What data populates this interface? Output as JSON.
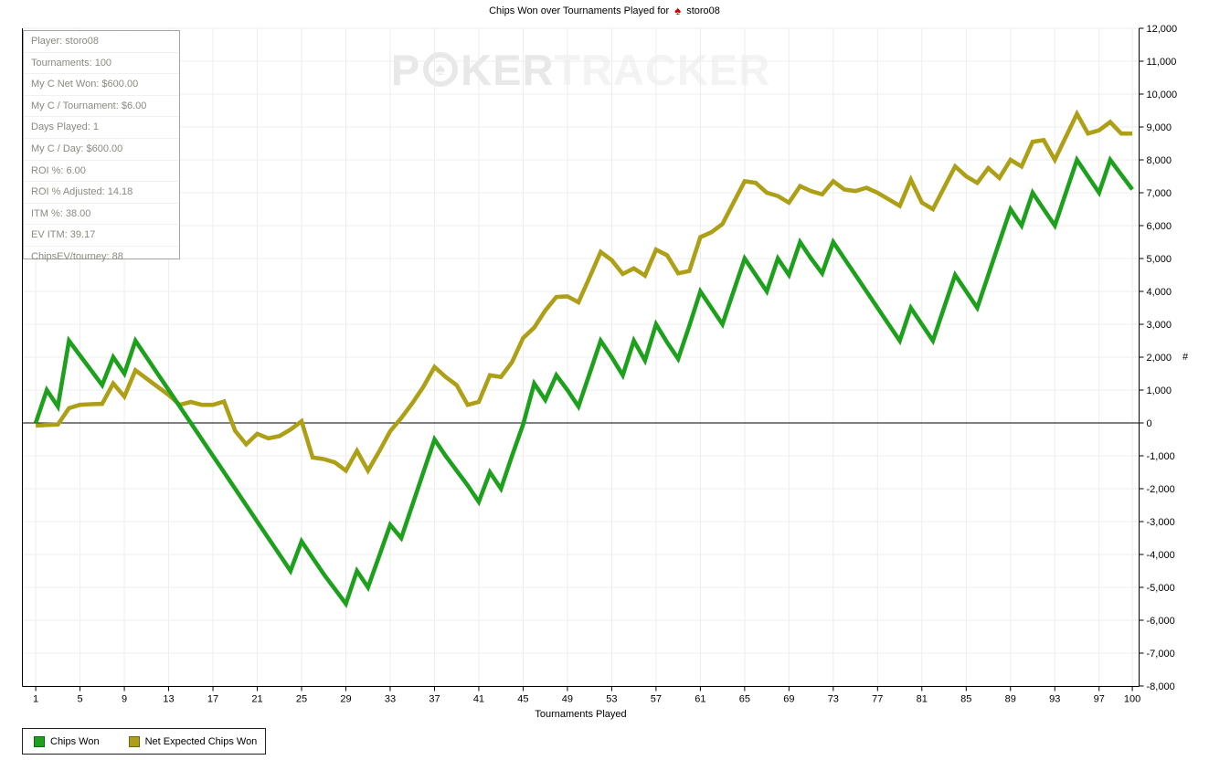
{
  "title": {
    "prefix": "Chips Won over Tournaments Played for",
    "player": "storo08",
    "site_icon": "red-spade",
    "icon_color": "#d40000"
  },
  "stats_panel": {
    "rows": [
      "Player: storo08",
      "Tournaments: 100",
      "My C Net Won: $600.00",
      "My C / Tournament: $6.00",
      "Days Played: 1",
      "My C / Day: $600.00",
      "ROI %: 6.00",
      "ROI % Adjusted: 14.18",
      "ITM %: 38.00",
      "EV ITM: 39.17",
      "ChipsEV/tourney: 88"
    ]
  },
  "watermark": {
    "p": "P",
    "ker": "KER",
    "tracker": "TRACKER",
    "chip_glyph": "♠"
  },
  "axes": {
    "x_label": "Tournaments Played",
    "y_label": "#"
  },
  "legend": {
    "items": [
      {
        "label": "Chips Won",
        "color": "#1da11d"
      },
      {
        "label": "Net Expected Chips Won",
        "color": "#aea016"
      }
    ]
  },
  "colors": {
    "grid": "#ededed",
    "axis": "#000000",
    "zero_line": "#000000",
    "tick_text": "#000000",
    "stats_text": "#8a8a80",
    "watermark_dark": "#e8e8e8",
    "watermark_light": "#f3f3f3"
  },
  "chart_data": {
    "type": "line",
    "title": "Chips Won over Tournaments Played for storo08",
    "xlabel": "Tournaments Played",
    "ylabel": "#",
    "xlim": [
      1,
      100
    ],
    "ylim": [
      -8000,
      12000
    ],
    "y_tick_step": 1000,
    "grid": true,
    "legend_position": "bottom-left",
    "x_ticks": [
      1,
      5,
      9,
      13,
      17,
      21,
      25,
      29,
      33,
      37,
      41,
      45,
      49,
      53,
      57,
      61,
      65,
      69,
      73,
      77,
      81,
      85,
      89,
      93,
      97,
      100
    ],
    "x_range_note": "x values are tournaments 1..100, one point per tournament (index+1)",
    "series": [
      {
        "name": "Net Expected Chips Won",
        "color": "#aea016",
        "values": [
          -80,
          -60,
          -50,
          450,
          550,
          570,
          580,
          1200,
          800,
          1600,
          1350,
          1100,
          850,
          550,
          640,
          550,
          550,
          650,
          -240,
          -650,
          -330,
          -470,
          -400,
          -200,
          50,
          -1050,
          -1100,
          -1200,
          -1450,
          -850,
          -1450,
          -870,
          -250,
          150,
          600,
          1100,
          1700,
          1400,
          1150,
          550,
          640,
          1450,
          1400,
          1850,
          2580,
          2900,
          3420,
          3830,
          3850,
          3670,
          4430,
          5200,
          4950,
          4530,
          4700,
          4480,
          5270,
          5100,
          4550,
          4620,
          5650,
          5800,
          6050,
          6700,
          7350,
          7300,
          7000,
          6900,
          6700,
          7200,
          7050,
          6950,
          7350,
          7100,
          7050,
          7150,
          7000,
          6800,
          6600,
          7400,
          6700,
          6500,
          7150,
          7800,
          7500,
          7300,
          7750,
          7450,
          8000,
          7800,
          8550,
          8600,
          8000,
          8700,
          9400,
          8800,
          8900,
          9150,
          8800,
          8800
        ]
      },
      {
        "name": "Chips Won",
        "color": "#1da11d",
        "values": [
          0,
          1000,
          500,
          2500,
          2050,
          1600,
          1150,
          2000,
          1500,
          2500,
          2000,
          1500,
          1000,
          500,
          0,
          -500,
          -1000,
          -1500,
          -2000,
          -2500,
          -3000,
          -3500,
          -4000,
          -4500,
          -3600,
          -4100,
          -4600,
          -5050,
          -5500,
          -4500,
          -5000,
          -4050,
          -3100,
          -3500,
          -2500,
          -1500,
          -500,
          -1000,
          -1450,
          -1900,
          -2400,
          -1500,
          -2000,
          -1000,
          -50,
          1200,
          700,
          1450,
          1000,
          500,
          1500,
          2500,
          2000,
          1450,
          2500,
          1900,
          3000,
          2450,
          1950,
          2950,
          4000,
          3500,
          3000,
          4000,
          5000,
          4500,
          4000,
          5000,
          4500,
          5500,
          5000,
          4550,
          5500,
          5000,
          4500,
          4000,
          3500,
          3000,
          2500,
          3500,
          3000,
          2500,
          3500,
          4500,
          4000,
          3500,
          4500,
          5500,
          6500,
          6000,
          7000,
          6500,
          6000,
          7000,
          8000,
          7500,
          7000,
          8000,
          7550,
          7100
        ]
      }
    ]
  }
}
